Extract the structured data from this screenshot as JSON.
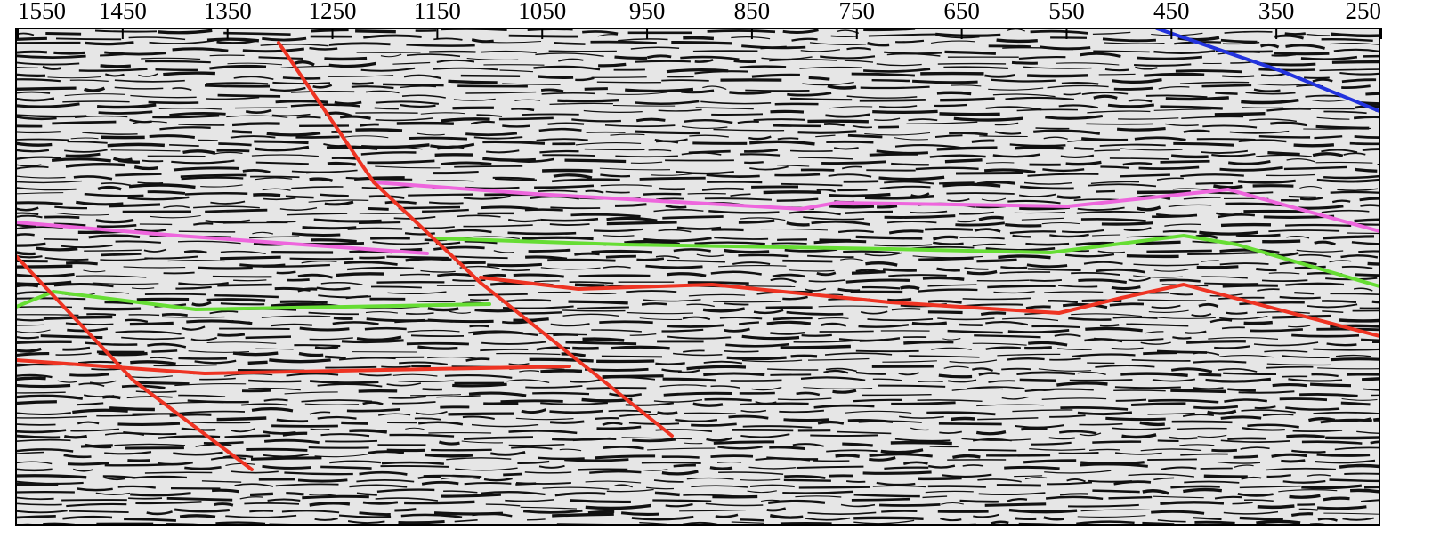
{
  "top_axis": {
    "ticks": [
      1550,
      1450,
      1350,
      1250,
      1150,
      1050,
      950,
      850,
      750,
      650,
      550,
      450,
      350,
      250
    ]
  }
}
